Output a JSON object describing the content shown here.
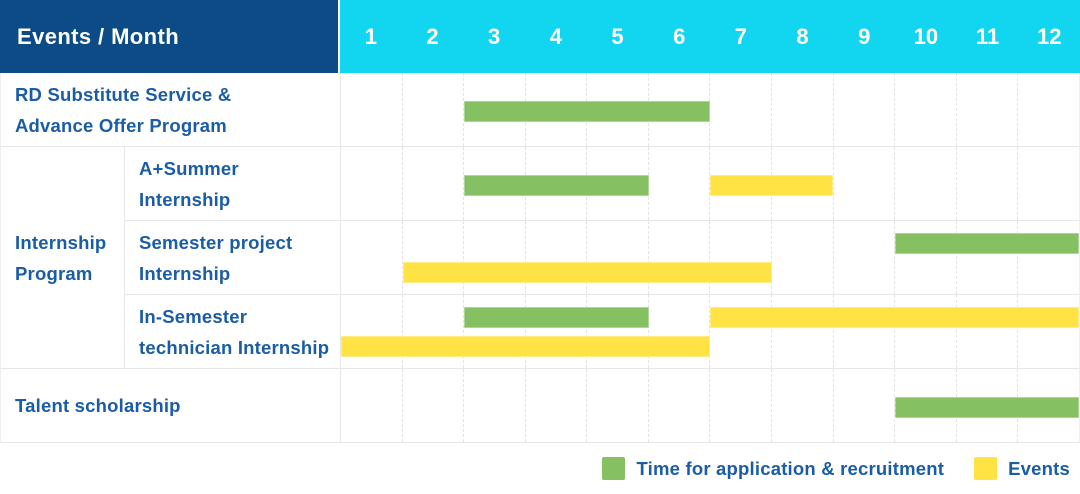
{
  "header": {
    "corner_label": "Events / Month"
  },
  "chart_data": {
    "type": "bar",
    "variant": "gantt-schedule",
    "x_label": "Month",
    "x_ticks": [
      "1",
      "2",
      "3",
      "4",
      "5",
      "6",
      "7",
      "8",
      "9",
      "10",
      "11",
      "12"
    ],
    "x_range": [
      1,
      12
    ],
    "rows": [
      {
        "name": "rd-substitute-service",
        "kind": "single",
        "label_lines": [
          "RD Substitute Service &",
          "Advance Offer Program"
        ],
        "bars": [
          {
            "series": "recruitment",
            "color_key": "green",
            "start_month": 3,
            "end_month": 6,
            "lane": "middle"
          }
        ]
      },
      {
        "name": "internship-program",
        "kind": "group",
        "label_lines": [
          "Internship",
          "Program"
        ],
        "subrows": [
          {
            "name": "a-plus-summer-internship",
            "label_lines": [
              "A+Summer",
              "Internship"
            ],
            "bars": [
              {
                "series": "recruitment",
                "color_key": "green",
                "start_month": 3,
                "end_month": 5,
                "lane": "middle"
              },
              {
                "series": "events",
                "color_key": "yellow",
                "start_month": 7,
                "end_month": 8,
                "lane": "middle"
              }
            ]
          },
          {
            "name": "semester-project-internship",
            "label_lines": [
              "Semester project",
              "Internship"
            ],
            "bars": [
              {
                "series": "recruitment",
                "color_key": "green",
                "start_month": 10,
                "end_month": 12,
                "lane": "top"
              },
              {
                "series": "events",
                "color_key": "yellow",
                "start_month": 2,
                "end_month": 7,
                "lane": "bottom"
              }
            ]
          },
          {
            "name": "in-semester-technician-internship",
            "label_lines": [
              "In-Semester",
              "technician Internship"
            ],
            "bars": [
              {
                "series": "recruitment",
                "color_key": "green",
                "start_month": 3,
                "end_month": 5,
                "lane": "top"
              },
              {
                "series": "events",
                "color_key": "yellow",
                "start_month": 7,
                "end_month": 12,
                "lane": "top"
              },
              {
                "series": "events",
                "color_key": "yellow",
                "start_month": 1,
                "end_month": 6,
                "lane": "bottom"
              }
            ]
          }
        ]
      },
      {
        "name": "talent-scholarship",
        "kind": "single",
        "label_lines": [
          "Talent scholarship"
        ],
        "bars": [
          {
            "series": "recruitment",
            "color_key": "green",
            "start_month": 10,
            "end_month": 12,
            "lane": "middle"
          }
        ]
      }
    ],
    "legend": [
      {
        "name": "recruitment",
        "color_key": "green",
        "label": "Time for application & recruitment"
      },
      {
        "name": "events",
        "color_key": "yellow",
        "label": "Events"
      }
    ]
  },
  "colors": {
    "header_navy": "#0C4B85",
    "header_cyan": "#12D6EF",
    "green": "#85C163",
    "yellow": "#FFE243",
    "label_blue": "#1A5CA6",
    "grid": "#E7E7E7"
  }
}
